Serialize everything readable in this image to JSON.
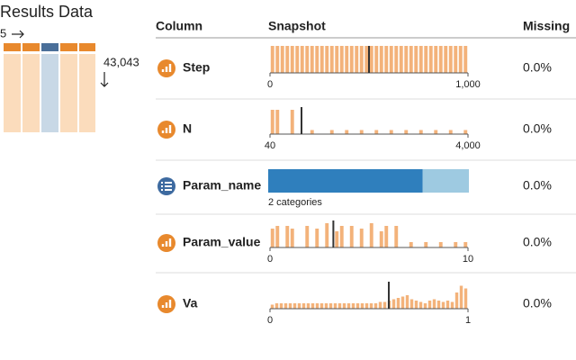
{
  "title": "Results Data",
  "shape": {
    "columns": "5",
    "rows": "43,043"
  },
  "table": {
    "headers": [
      "Column",
      "Snapshot",
      "Missing"
    ],
    "rows": [
      {
        "name": "Step",
        "kind": "numeric",
        "histogram": [
          1,
          1,
          1,
          1,
          1,
          1,
          1,
          1,
          1,
          1,
          1,
          1,
          1,
          1,
          1,
          1,
          1,
          1,
          1,
          1,
          1,
          1,
          1,
          1,
          1,
          1,
          1,
          1,
          1,
          1,
          1,
          1,
          1,
          1,
          1,
          1,
          1,
          1,
          1,
          1
        ],
        "xlim": [
          0,
          1000
        ],
        "xticks": [
          0,
          {
            "value": 1000,
            "label": "1,000"
          }
        ],
        "marker": 500,
        "missing": "0.0%"
      },
      {
        "name": "N",
        "kind": "numeric",
        "histogram": [
          0.9,
          0.9,
          0,
          0,
          0.9,
          0,
          0,
          0,
          0.15,
          0,
          0,
          0,
          0.15,
          0,
          0,
          0.15,
          0,
          0,
          0.15,
          0,
          0,
          0.15,
          0,
          0,
          0.15,
          0,
          0,
          0.15,
          0,
          0,
          0.15,
          0,
          0,
          0.15,
          0,
          0,
          0.15,
          0,
          0,
          0.15
        ],
        "xlim": [
          40,
          4000
        ],
        "xticks": [
          40,
          {
            "value": 4000,
            "label": "4,000"
          }
        ],
        "marker": 670,
        "missing": "0.0%"
      },
      {
        "name": "Param_name",
        "kind": "categorical",
        "values": [
          77,
          23
        ],
        "colors": [
          "#2f7fbd",
          "#9ecae1"
        ],
        "caption": "2 categories",
        "missing": "0.0%"
      },
      {
        "name": "Param_value",
        "kind": "numeric",
        "histogram": [
          0.7,
          0.8,
          0,
          0.8,
          0.7,
          0,
          0,
          0.8,
          0,
          0.7,
          0,
          0.9,
          0,
          0.6,
          0.8,
          0,
          0.8,
          0,
          0.7,
          0,
          0.9,
          0,
          0.6,
          0.8,
          0,
          0.8,
          0,
          0,
          0.2,
          0,
          0,
          0.2,
          0,
          0,
          0.2,
          0,
          0,
          0.2,
          0,
          0.2
        ],
        "xlim": [
          0,
          10
        ],
        "xticks": [
          0,
          10
        ],
        "marker": 3.2,
        "missing": "0.0%"
      },
      {
        "name": "Va",
        "kind": "numeric",
        "histogram": [
          0.15,
          0.2,
          0.2,
          0.2,
          0.2,
          0.2,
          0.2,
          0.2,
          0.2,
          0.2,
          0.2,
          0.2,
          0.2,
          0.2,
          0.2,
          0.2,
          0.2,
          0.2,
          0.2,
          0.2,
          0.2,
          0.2,
          0.2,
          0.2,
          0.25,
          0.25,
          0.3,
          0.35,
          0.4,
          0.45,
          0.5,
          0.35,
          0.3,
          0.25,
          0.2,
          0.3,
          0.35,
          0.3,
          0.25,
          0.3,
          0.25,
          0.6,
          0.85,
          0.75
        ],
        "xlim": [
          0,
          1
        ],
        "xticks": [
          0,
          1
        ],
        "marker": 0.6,
        "missing": "0.0%"
      }
    ]
  }
}
